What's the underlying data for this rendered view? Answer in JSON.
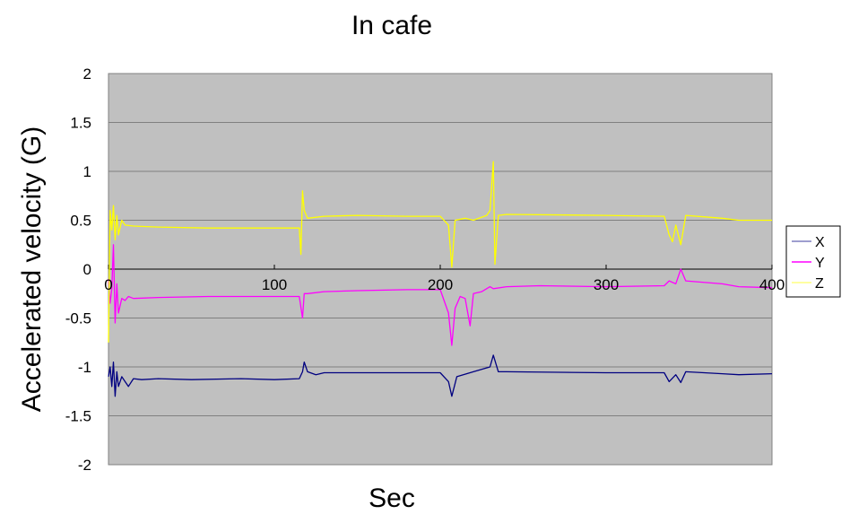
{
  "chart_data": {
    "type": "line",
    "title": "In cafe",
    "xlabel": "Sec",
    "ylabel": "Accelerated velocity (G)",
    "xlim": [
      0,
      400
    ],
    "ylim": [
      -2,
      2
    ],
    "x_ticks": [
      "0",
      "100",
      "200",
      "300",
      "400"
    ],
    "y_ticks": [
      "2",
      "1.5",
      "1",
      "0.5",
      "0",
      "-0.5",
      "-1",
      "-1.5",
      "-2"
    ],
    "grid": true,
    "plot_background": "#c0c0c0",
    "legend_position": "right",
    "series": [
      {
        "name": "X",
        "color": "#000080",
        "legend_color": "#7f7fbf",
        "points": [
          [
            0,
            -1.1
          ],
          [
            1,
            -1.0
          ],
          [
            2,
            -1.2
          ],
          [
            3,
            -0.95
          ],
          [
            4,
            -1.3
          ],
          [
            5,
            -1.05
          ],
          [
            6,
            -1.2
          ],
          [
            8,
            -1.1
          ],
          [
            10,
            -1.15
          ],
          [
            12,
            -1.2
          ],
          [
            15,
            -1.12
          ],
          [
            20,
            -1.13
          ],
          [
            30,
            -1.12
          ],
          [
            50,
            -1.13
          ],
          [
            80,
            -1.12
          ],
          [
            100,
            -1.13
          ],
          [
            115,
            -1.12
          ],
          [
            117,
            -1.05
          ],
          [
            118,
            -0.95
          ],
          [
            120,
            -1.05
          ],
          [
            125,
            -1.08
          ],
          [
            130,
            -1.06
          ],
          [
            150,
            -1.06
          ],
          [
            180,
            -1.06
          ],
          [
            200,
            -1.06
          ],
          [
            205,
            -1.15
          ],
          [
            207,
            -1.3
          ],
          [
            210,
            -1.1
          ],
          [
            220,
            -1.05
          ],
          [
            230,
            -1.0
          ],
          [
            232,
            -0.88
          ],
          [
            235,
            -1.05
          ],
          [
            240,
            -1.05
          ],
          [
            300,
            -1.06
          ],
          [
            335,
            -1.06
          ],
          [
            338,
            -1.15
          ],
          [
            342,
            -1.08
          ],
          [
            345,
            -1.16
          ],
          [
            348,
            -1.05
          ],
          [
            370,
            -1.07
          ],
          [
            380,
            -1.08
          ],
          [
            400,
            -1.07
          ]
        ]
      },
      {
        "name": "Y",
        "color": "#ff00ff",
        "legend_color": "#ff00ff",
        "points": [
          [
            0,
            -0.1
          ],
          [
            1,
            -0.35
          ],
          [
            2,
            -0.2
          ],
          [
            3,
            0.25
          ],
          [
            4,
            -0.55
          ],
          [
            5,
            -0.15
          ],
          [
            6,
            -0.45
          ],
          [
            8,
            -0.3
          ],
          [
            10,
            -0.32
          ],
          [
            12,
            -0.28
          ],
          [
            15,
            -0.3
          ],
          [
            30,
            -0.29
          ],
          [
            60,
            -0.28
          ],
          [
            90,
            -0.28
          ],
          [
            115,
            -0.28
          ],
          [
            117,
            -0.5
          ],
          [
            118,
            -0.25
          ],
          [
            120,
            -0.25
          ],
          [
            130,
            -0.23
          ],
          [
            150,
            -0.22
          ],
          [
            180,
            -0.21
          ],
          [
            200,
            -0.21
          ],
          [
            205,
            -0.45
          ],
          [
            207,
            -0.78
          ],
          [
            209,
            -0.4
          ],
          [
            212,
            -0.28
          ],
          [
            215,
            -0.3
          ],
          [
            218,
            -0.58
          ],
          [
            220,
            -0.25
          ],
          [
            225,
            -0.23
          ],
          [
            230,
            -0.18
          ],
          [
            232,
            -0.2
          ],
          [
            240,
            -0.18
          ],
          [
            260,
            -0.17
          ],
          [
            300,
            -0.18
          ],
          [
            335,
            -0.17
          ],
          [
            338,
            -0.12
          ],
          [
            342,
            -0.15
          ],
          [
            345,
            0.0
          ],
          [
            348,
            -0.12
          ],
          [
            370,
            -0.15
          ],
          [
            380,
            -0.18
          ],
          [
            400,
            -0.19
          ]
        ]
      },
      {
        "name": "Z",
        "color": "#ffff00",
        "legend_color": "#ffff80",
        "points": [
          [
            0,
            -0.75
          ],
          [
            1,
            0.6
          ],
          [
            2,
            0.4
          ],
          [
            3,
            0.65
          ],
          [
            4,
            0.3
          ],
          [
            5,
            0.55
          ],
          [
            6,
            0.35
          ],
          [
            8,
            0.5
          ],
          [
            10,
            0.45
          ],
          [
            15,
            0.44
          ],
          [
            30,
            0.43
          ],
          [
            60,
            0.42
          ],
          [
            90,
            0.42
          ],
          [
            115,
            0.42
          ],
          [
            116,
            0.15
          ],
          [
            117,
            0.8
          ],
          [
            118,
            0.6
          ],
          [
            120,
            0.52
          ],
          [
            130,
            0.54
          ],
          [
            150,
            0.55
          ],
          [
            180,
            0.54
          ],
          [
            200,
            0.54
          ],
          [
            205,
            0.45
          ],
          [
            207,
            0.02
          ],
          [
            209,
            0.5
          ],
          [
            215,
            0.52
          ],
          [
            220,
            0.5
          ],
          [
            228,
            0.55
          ],
          [
            230,
            0.6
          ],
          [
            232,
            1.1
          ],
          [
            233,
            0.05
          ],
          [
            235,
            0.55
          ],
          [
            240,
            0.56
          ],
          [
            300,
            0.55
          ],
          [
            335,
            0.54
          ],
          [
            338,
            0.35
          ],
          [
            340,
            0.28
          ],
          [
            342,
            0.45
          ],
          [
            345,
            0.25
          ],
          [
            348,
            0.55
          ],
          [
            370,
            0.52
          ],
          [
            380,
            0.5
          ],
          [
            400,
            0.5
          ]
        ]
      }
    ]
  }
}
